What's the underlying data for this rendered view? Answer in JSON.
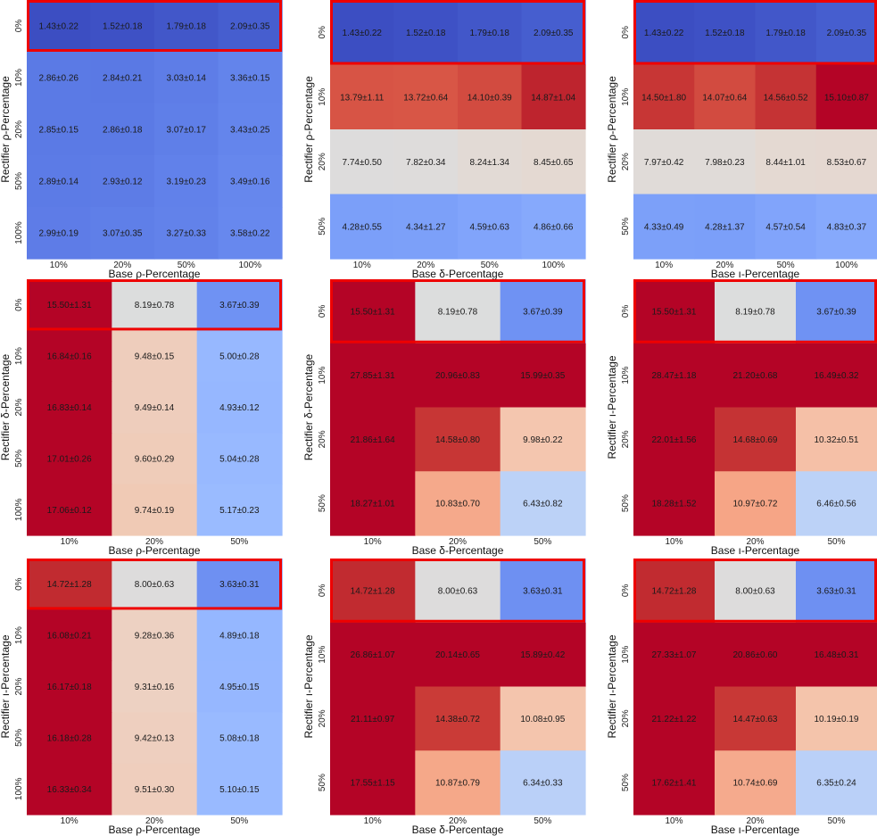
{
  "chart_data": [
    {
      "type": "heatmap",
      "xlabel": "Base ρ-Percentage",
      "ylabel": "Rectifier ρ-Percentage",
      "x_ticks": [
        "10%",
        "20%",
        "50%",
        "100%"
      ],
      "y_ticks": [
        "0%",
        "10%",
        "20%",
        "50%",
        "100%"
      ],
      "highlight_row": 0,
      "cells": [
        [
          "1.43±0.22",
          "1.52±0.18",
          "1.79±0.18",
          "2.09±0.35"
        ],
        [
          "2.86±0.26",
          "2.84±0.21",
          "3.03±0.14",
          "3.36±0.15"
        ],
        [
          "2.85±0.15",
          "2.86±0.18",
          "3.07±0.17",
          "3.43±0.25"
        ],
        [
          "2.89±0.14",
          "2.93±0.12",
          "3.19±0.23",
          "3.49±0.16"
        ],
        [
          "2.99±0.19",
          "3.07±0.35",
          "3.27±0.33",
          "3.58±0.22"
        ]
      ],
      "colors": [
        [
          "#3c4ec2",
          "#3e51c5",
          "#4257c9",
          "#465ecf"
        ],
        [
          "#5b7ae5",
          "#5a79e4",
          "#5e7de7",
          "#6384eb"
        ],
        [
          "#5b7ae5",
          "#5b7ae5",
          "#5f7fe8",
          "#6485ec"
        ],
        [
          "#5c7be6",
          "#5d7ce6",
          "#6181ea",
          "#6687ed"
        ],
        [
          "#5e7ce7",
          "#5f7fe8",
          "#6282ea",
          "#6788ee"
        ]
      ]
    },
    {
      "type": "heatmap",
      "xlabel": "Base δ-Percentage",
      "ylabel": "Rectifier ρ-Percentage",
      "x_ticks": [
        "10%",
        "20%",
        "50%",
        "100%"
      ],
      "y_ticks": [
        "0%",
        "10%",
        "20%",
        "50%"
      ],
      "highlight_row": 0,
      "cells": [
        [
          "1.43±0.22",
          "1.52±0.18",
          "1.79±0.18",
          "2.09±0.35"
        ],
        [
          "13.79±1.11",
          "13.72±0.64",
          "14.10±0.39",
          "14.87±1.04"
        ],
        [
          "7.74±0.50",
          "7.82±0.34",
          "8.24±1.34",
          "8.45±0.65"
        ],
        [
          "4.28±0.55",
          "4.34±1.27",
          "4.59±0.63",
          "4.86±0.66"
        ]
      ],
      "colors": [
        [
          "#3c4ec2",
          "#3e51c5",
          "#4257c9",
          "#465ecf"
        ],
        [
          "#d75445",
          "#d85646",
          "#d24b40",
          "#be242e"
        ],
        [
          "#dddcdc",
          "#dedcdb",
          "#e2dad5",
          "#e4d9d2"
        ],
        [
          "#7b9ff9",
          "#7ca0f9",
          "#81a4fb",
          "#86a9fc"
        ]
      ]
    },
    {
      "type": "heatmap",
      "xlabel": "Base ı-Percentage",
      "ylabel": "Rectifier ρ-Percentage",
      "x_ticks": [
        "10%",
        "20%",
        "50%",
        "100%"
      ],
      "y_ticks": [
        "0%",
        "10%",
        "20%",
        "50%"
      ],
      "highlight_row": 0,
      "cells": [
        [
          "1.43±0.22",
          "1.52±0.18",
          "1.79±0.18",
          "2.09±0.35"
        ],
        [
          "14.50±1.80",
          "14.07±0.64",
          "14.56±0.52",
          "15.10±0.87"
        ],
        [
          "7.97±0.42",
          "7.98±0.23",
          "8.44±1.01",
          "8.53±0.67"
        ],
        [
          "4.33±0.49",
          "4.28±1.37",
          "4.57±0.54",
          "4.83±0.37"
        ]
      ],
      "colors": [
        [
          "#3c4ec2",
          "#3e51c5",
          "#4257c9",
          "#465ecf"
        ],
        [
          "#c73635",
          "#d24b40",
          "#c53334",
          "#b40426"
        ],
        [
          "#e0dbd8",
          "#e0dbd8",
          "#e4d9d2",
          "#e5d8d1"
        ],
        [
          "#7ca0f9",
          "#7b9ff9",
          "#81a4fb",
          "#86a9fc"
        ]
      ]
    },
    {
      "type": "heatmap",
      "xlabel": "Base ρ-Percentage",
      "ylabel": "Rectifier δ-Percentage",
      "x_ticks": [
        "10%",
        "20%",
        "50%"
      ],
      "y_ticks": [
        "0%",
        "10%",
        "20%",
        "50%",
        "100%"
      ],
      "highlight_row": 0,
      "cells": [
        [
          "15.50±1.31",
          "8.19±0.78",
          "3.67±0.39"
        ],
        [
          "16.84±0.16",
          "9.48±0.15",
          "5.00±0.28"
        ],
        [
          "16.83±0.14",
          "9.49±0.14",
          "4.93±0.12"
        ],
        [
          "17.01±0.26",
          "9.60±0.29",
          "5.04±0.28"
        ],
        [
          "17.06±0.12",
          "9.74±0.19",
          "5.17±0.23"
        ]
      ],
      "colors": [
        [
          "#b40426",
          "#dcdddd",
          "#6f92f3"
        ],
        [
          "#b40426",
          "#eecdbc",
          "#97b8ff"
        ],
        [
          "#b40426",
          "#eecdbc",
          "#96b7ff"
        ],
        [
          "#b40426",
          "#efccb9",
          "#98b9ff"
        ],
        [
          "#b40426",
          "#f0cab5",
          "#9abbff"
        ]
      ]
    },
    {
      "type": "heatmap",
      "xlabel": "Base δ-Percentage",
      "ylabel": "Rectifier δ-Percentage",
      "x_ticks": [
        "10%",
        "20%",
        "50%"
      ],
      "y_ticks": [
        "0%",
        "10%",
        "20%",
        "50%"
      ],
      "highlight_row": 0,
      "cells": [
        [
          "15.50±1.31",
          "8.19±0.78",
          "3.67±0.39"
        ],
        [
          "27.85±1.31",
          "20.96±0.83",
          "15.99±0.35"
        ],
        [
          "21.86±1.64",
          "14.58±0.80",
          "9.98±0.22"
        ],
        [
          "18.27±1.01",
          "10.83±0.70",
          "6.43±0.82"
        ]
      ],
      "colors": [
        [
          "#b40426",
          "#dcdddd",
          "#6f92f3"
        ],
        [
          "#b40426",
          "#b40426",
          "#b40426"
        ],
        [
          "#b40426",
          "#c73635",
          "#f4c6af"
        ],
        [
          "#b40426",
          "#f5a98b",
          "#bcd2f7"
        ]
      ]
    },
    {
      "type": "heatmap",
      "xlabel": "Base ı-Percentage",
      "ylabel": "Rectifier ı-Percentage",
      "x_ticks": [
        "10%",
        "20%",
        "50%"
      ],
      "y_ticks": [
        "0%",
        "10%",
        "20%",
        "50%"
      ],
      "highlight_row": 0,
      "cells": [
        [
          "15.50±1.31",
          "8.19±0.78",
          "3.67±0.39"
        ],
        [
          "28.47±1.18",
          "21.20±0.68",
          "16.49±0.32"
        ],
        [
          "22.01±1.56",
          "14.68±0.69",
          "10.32±0.51"
        ],
        [
          "18.28±1.52",
          "10.97±0.72",
          "6.46±0.56"
        ]
      ],
      "colors": [
        [
          "#b40426",
          "#dcdddd",
          "#6f92f3"
        ],
        [
          "#b40426",
          "#b40426",
          "#b40426"
        ],
        [
          "#b40426",
          "#c53334",
          "#f5c0a7"
        ],
        [
          "#b40426",
          "#f6a586",
          "#bcd2f7"
        ]
      ]
    },
    {
      "type": "heatmap",
      "xlabel": "Base ρ-Percentage",
      "ylabel": "Rectifier ı-Percentage",
      "x_ticks": [
        "10%",
        "20%",
        "50%"
      ],
      "y_ticks": [
        "0%",
        "10%",
        "20%",
        "50%",
        "100%"
      ],
      "highlight_row": 0,
      "cells": [
        [
          "14.72±1.28",
          "8.00±0.63",
          "3.63±0.31"
        ],
        [
          "16.08±0.21",
          "9.28±0.36",
          "4.89±0.18"
        ],
        [
          "16.17±0.18",
          "9.31±0.16",
          "4.95±0.15"
        ],
        [
          "16.18±0.28",
          "9.42±0.13",
          "5.08±0.18"
        ],
        [
          "16.33±0.34",
          "9.51±0.30",
          "5.10±0.15"
        ]
      ],
      "colors": [
        [
          "#c12b30",
          "#dddcdc",
          "#6e90f2"
        ],
        [
          "#b40426",
          "#edd1c2",
          "#95b7ff"
        ],
        [
          "#b40426",
          "#edd1c2",
          "#96b7ff"
        ],
        [
          "#b40426",
          "#eecfbf",
          "#99baff"
        ],
        [
          "#b40426",
          "#efcebd",
          "#99baff"
        ]
      ]
    },
    {
      "type": "heatmap",
      "xlabel": "Base δ-Percentage",
      "ylabel": "Rectifier ı-Percentage",
      "x_ticks": [
        "10%",
        "20%",
        "50%"
      ],
      "y_ticks": [
        "0%",
        "10%",
        "20%",
        "50%"
      ],
      "highlight_row": 0,
      "cells": [
        [
          "14.72±1.28",
          "8.00±0.63",
          "3.63±0.31"
        ],
        [
          "26.86±1.07",
          "20.14±0.65",
          "15.89±0.42"
        ],
        [
          "21.11±0.97",
          "14.38±0.72",
          "10.08±0.95"
        ],
        [
          "17.55±1.15",
          "10.87±0.79",
          "6.34±0.33"
        ]
      ],
      "colors": [
        [
          "#c12b30",
          "#dddcdc",
          "#6e90f2"
        ],
        [
          "#b40426",
          "#b40426",
          "#b40426"
        ],
        [
          "#b40426",
          "#ca3b37",
          "#f4c5ad"
        ],
        [
          "#b40426",
          "#f5a889",
          "#bad0f8"
        ]
      ]
    },
    {
      "type": "heatmap",
      "xlabel": "Base ı-Percentage",
      "ylabel": "Rectifier ı-Percentage",
      "x_ticks": [
        "10%",
        "20%",
        "50%"
      ],
      "y_ticks": [
        "0%",
        "10%",
        "20%",
        "50%"
      ],
      "highlight_row": 0,
      "cells": [
        [
          "14.72±1.28",
          "8.00±0.63",
          "3.63±0.31"
        ],
        [
          "27.33±1.07",
          "20.86±0.60",
          "16.48±0.31"
        ],
        [
          "21.22±1.22",
          "14.47±0.63",
          "10.19±0.19"
        ],
        [
          "17.62±1.41",
          "10.74±0.69",
          "6.35±0.24"
        ]
      ],
      "colors": [
        [
          "#c12b30",
          "#dddcdc",
          "#6e90f2"
        ],
        [
          "#b40426",
          "#b40426",
          "#b40426"
        ],
        [
          "#b40426",
          "#c83836",
          "#f4c4ab"
        ],
        [
          "#b40426",
          "#f5aa8d",
          "#bad0f8"
        ]
      ]
    }
  ]
}
